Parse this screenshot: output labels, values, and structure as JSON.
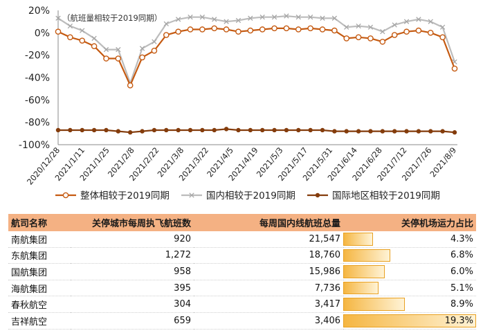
{
  "chart_data": {
    "type": "line",
    "annotation": "（航班量相较于2019同期）",
    "ylim": [
      -100,
      20
    ],
    "yticks": [
      "20%",
      "0%",
      "-20%",
      "-40%",
      "-60%",
      "-80%",
      "-100%"
    ],
    "x_labels": [
      "2020/12/28",
      "2021/1/11",
      "2021/1/25",
      "2021/2/8",
      "2021/2/22",
      "2021/3/8",
      "2021/3/22",
      "2021/4/5",
      "2021/4/19",
      "2021/5/3",
      "2021/5/17",
      "2021/5/31",
      "2021/6/14",
      "2021/6/28",
      "2021/7/12",
      "2021/7/26",
      "2021/8/9"
    ],
    "legend_placement": "bottom",
    "series": [
      {
        "name": "整体相较于2019同期",
        "color": "#c55a11",
        "marker": "circle",
        "values": [
          1,
          -4,
          -7,
          -12,
          -23,
          -23,
          -47,
          -22,
          -16,
          -2,
          1,
          3,
          3,
          4,
          3,
          1,
          2,
          3,
          4,
          4,
          3,
          4,
          3,
          2,
          -5,
          -4,
          -5,
          -8,
          -2,
          1,
          2,
          0,
          -4,
          -32
        ]
      },
      {
        "name": "国内相较于2019同期",
        "color": "#bcbcbc",
        "marker": "x",
        "values": [
          13,
          6,
          2,
          -5,
          -15,
          -15,
          -45,
          -14,
          -8,
          8,
          12,
          14,
          14,
          12,
          10,
          11,
          13,
          14,
          14,
          15,
          14,
          14,
          13,
          13,
          5,
          6,
          5,
          1,
          7,
          10,
          12,
          10,
          5,
          -26
        ]
      },
      {
        "name": "国际地区相较于2019同期",
        "color": "#843c0c",
        "marker": "dot",
        "values": [
          -87,
          -87,
          -87,
          -87,
          -87,
          -88,
          -89,
          -88,
          -87,
          -87,
          -87,
          -87,
          -87,
          -87,
          -86,
          -87,
          -87,
          -87,
          -87,
          -87,
          -87,
          -87,
          -87,
          -88,
          -88,
          -88,
          -88,
          -88,
          -88,
          -88,
          -88,
          -88,
          -88,
          -89
        ]
      }
    ]
  },
  "table": {
    "headers": [
      "航司名称",
      "关停城市每周执飞航班数",
      "每周国内线航班总量",
      "关停机场运力占比"
    ],
    "rows": [
      {
        "name": "南航集团",
        "closed": "920",
        "total": "21,547",
        "share": "4.3%",
        "share_value": 4.3
      },
      {
        "name": "东航集团",
        "closed": "1,272",
        "total": "18,760",
        "share": "6.8%",
        "share_value": 6.8
      },
      {
        "name": "国航集团",
        "closed": "958",
        "total": "15,986",
        "share": "6.0%",
        "share_value": 6.0
      },
      {
        "name": "海航集团",
        "closed": "395",
        "total": "7,736",
        "share": "5.1%",
        "share_value": 5.1
      },
      {
        "name": "春秋航空",
        "closed": "304",
        "total": "3,417",
        "share": "8.9%",
        "share_value": 8.9
      },
      {
        "name": "吉祥航空",
        "closed": "659",
        "total": "3,406",
        "share": "19.3%",
        "share_value": 19.3
      }
    ]
  }
}
